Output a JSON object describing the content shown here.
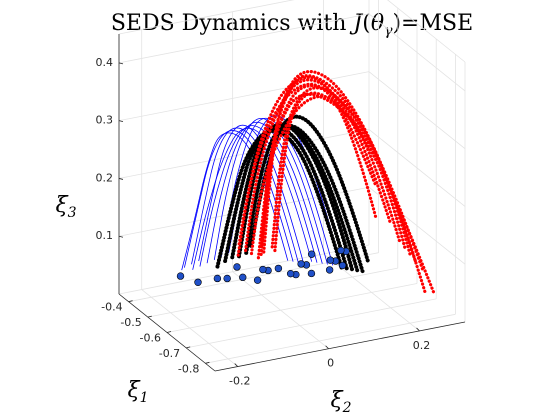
{
  "chart_data": {
    "type": "line",
    "projection": "3d",
    "title": "SEDS Dynamics with J(θγ)=MSE",
    "title_parts": {
      "prefix": "SEDS Dynamics with ",
      "fn": "J",
      "open": "(",
      "theta": "θ",
      "sub": "γ",
      "close": ")",
      "suffix": "=MSE"
    },
    "xlabel": {
      "symbol": "ξ",
      "sub": "1"
    },
    "ylabel": {
      "symbol": "ξ",
      "sub": "2"
    },
    "zlabel": {
      "symbol": "ξ",
      "sub": "3"
    },
    "x_ticks": [
      "-0.4",
      "-0.5",
      "-0.6",
      "-0.7",
      "-0.8"
    ],
    "y_ticks": [
      "0.2",
      "0",
      "-0.2"
    ],
    "z_ticks": [
      "0.1",
      "0.2",
      "0.3",
      "0.4"
    ],
    "xlim": [
      -0.85,
      -0.35
    ],
    "ylim": [
      -0.25,
      0.3
    ],
    "zlim": [
      0,
      0.45
    ],
    "grid": true,
    "colors": {
      "red": "#ff0000",
      "black": "#000000",
      "blue": "#0000ff",
      "marker": "#2050c8",
      "grid": "#e3e3e3",
      "axis": "#262626"
    },
    "series": [
      {
        "color": "red",
        "points": [
          [
            -0.78,
            0.22,
            0.1
          ],
          [
            -0.72,
            0.18,
            0.25
          ],
          [
            -0.63,
            0.12,
            0.38
          ],
          [
            -0.55,
            0.07,
            0.4
          ],
          [
            -0.48,
            0.05,
            0.32
          ],
          [
            -0.46,
            0.04,
            0.22
          ],
          [
            -0.44,
            0.03,
            0.05
          ]
        ]
      },
      {
        "color": "red",
        "points": [
          [
            -0.8,
            0.2,
            0.12
          ],
          [
            -0.74,
            0.17,
            0.27
          ],
          [
            -0.65,
            0.11,
            0.37
          ],
          [
            -0.57,
            0.06,
            0.38
          ],
          [
            -0.5,
            0.04,
            0.3
          ],
          [
            -0.47,
            0.03,
            0.2
          ],
          [
            -0.45,
            0.02,
            0.05
          ]
        ]
      },
      {
        "color": "red",
        "points": [
          [
            -0.82,
            0.18,
            0.14
          ],
          [
            -0.76,
            0.15,
            0.29
          ],
          [
            -0.67,
            0.1,
            0.36
          ],
          [
            -0.58,
            0.05,
            0.37
          ],
          [
            -0.51,
            0.03,
            0.29
          ],
          [
            -0.48,
            0.02,
            0.19
          ],
          [
            -0.46,
            0.01,
            0.05
          ]
        ]
      },
      {
        "color": "red",
        "points": [
          [
            -0.77,
            0.24,
            0.08
          ],
          [
            -0.7,
            0.2,
            0.22
          ],
          [
            -0.62,
            0.14,
            0.35
          ],
          [
            -0.54,
            0.08,
            0.39
          ],
          [
            -0.48,
            0.06,
            0.33
          ],
          [
            -0.45,
            0.04,
            0.23
          ],
          [
            -0.43,
            0.03,
            0.06
          ]
        ]
      },
      {
        "color": "red",
        "points": [
          [
            -0.79,
            0.16,
            0.18
          ],
          [
            -0.72,
            0.13,
            0.31
          ],
          [
            -0.63,
            0.09,
            0.39
          ],
          [
            -0.55,
            0.05,
            0.38
          ],
          [
            -0.49,
            0.02,
            0.28
          ],
          [
            -0.46,
            0.0,
            0.17
          ],
          [
            -0.44,
            -0.01,
            0.06
          ]
        ]
      },
      {
        "color": "red",
        "points": [
          [
            -0.81,
            0.12,
            0.2
          ],
          [
            -0.74,
            0.1,
            0.33
          ],
          [
            -0.65,
            0.07,
            0.4
          ],
          [
            -0.57,
            0.03,
            0.37
          ],
          [
            -0.5,
            0.0,
            0.27
          ],
          [
            -0.47,
            -0.02,
            0.16
          ],
          [
            -0.45,
            -0.03,
            0.06
          ]
        ]
      },
      {
        "color": "red",
        "points": [
          [
            -0.83,
            0.22,
            0.06
          ],
          [
            -0.76,
            0.19,
            0.2
          ],
          [
            -0.68,
            0.14,
            0.33
          ],
          [
            -0.59,
            0.09,
            0.38
          ],
          [
            -0.52,
            0.06,
            0.33
          ],
          [
            -0.48,
            0.05,
            0.22
          ],
          [
            -0.46,
            0.04,
            0.06
          ]
        ]
      },
      {
        "color": "red",
        "points": [
          [
            -0.76,
            0.14,
            0.24
          ],
          [
            -0.69,
            0.11,
            0.34
          ],
          [
            -0.6,
            0.08,
            0.4
          ],
          [
            -0.52,
            0.04,
            0.36
          ],
          [
            -0.47,
            0.01,
            0.26
          ],
          [
            -0.45,
            -0.01,
            0.16
          ],
          [
            -0.43,
            -0.02,
            0.07
          ]
        ]
      },
      {
        "color": "red",
        "points": [
          [
            -0.84,
            0.16,
            0.16
          ],
          [
            -0.77,
            0.13,
            0.3
          ],
          [
            -0.68,
            0.09,
            0.38
          ],
          [
            -0.6,
            0.05,
            0.36
          ],
          [
            -0.53,
            0.02,
            0.27
          ],
          [
            -0.49,
            0.0,
            0.17
          ],
          [
            -0.47,
            -0.01,
            0.06
          ]
        ]
      },
      {
        "color": "red",
        "points": [
          [
            -0.78,
            0.26,
            0.04
          ],
          [
            -0.72,
            0.22,
            0.16
          ],
          [
            -0.64,
            0.16,
            0.3
          ],
          [
            -0.56,
            0.1,
            0.36
          ],
          [
            -0.5,
            0.07,
            0.32
          ],
          [
            -0.47,
            0.06,
            0.21
          ],
          [
            -0.45,
            0.05,
            0.05
          ]
        ]
      },
      {
        "color": "black",
        "points": [
          [
            -0.62,
            0.16,
            0.05
          ],
          [
            -0.6,
            0.13,
            0.15
          ],
          [
            -0.57,
            0.09,
            0.25
          ],
          [
            -0.53,
            0.05,
            0.3
          ],
          [
            -0.48,
            0.02,
            0.28
          ],
          [
            -0.45,
            0.0,
            0.18
          ],
          [
            -0.43,
            -0.02,
            0.05
          ]
        ]
      },
      {
        "color": "black",
        "points": [
          [
            -0.64,
            0.14,
            0.06
          ],
          [
            -0.62,
            0.11,
            0.17
          ],
          [
            -0.58,
            0.07,
            0.27
          ],
          [
            -0.54,
            0.03,
            0.31
          ],
          [
            -0.49,
            0.0,
            0.27
          ],
          [
            -0.46,
            -0.02,
            0.17
          ],
          [
            -0.44,
            -0.04,
            0.05
          ]
        ]
      },
      {
        "color": "black",
        "points": [
          [
            -0.6,
            0.18,
            0.04
          ],
          [
            -0.58,
            0.15,
            0.14
          ],
          [
            -0.55,
            0.11,
            0.24
          ],
          [
            -0.51,
            0.07,
            0.29
          ],
          [
            -0.47,
            0.04,
            0.27
          ],
          [
            -0.44,
            0.02,
            0.18
          ],
          [
            -0.42,
            0.0,
            0.05
          ]
        ]
      },
      {
        "color": "black",
        "points": [
          [
            -0.66,
            0.12,
            0.07
          ],
          [
            -0.63,
            0.09,
            0.18
          ],
          [
            -0.59,
            0.05,
            0.28
          ],
          [
            -0.55,
            0.01,
            0.31
          ],
          [
            -0.5,
            -0.02,
            0.26
          ],
          [
            -0.47,
            -0.04,
            0.16
          ],
          [
            -0.45,
            -0.06,
            0.05
          ]
        ]
      },
      {
        "color": "black",
        "points": [
          [
            -0.58,
            0.2,
            0.05
          ],
          [
            -0.56,
            0.17,
            0.15
          ],
          [
            -0.53,
            0.13,
            0.25
          ],
          [
            -0.5,
            0.09,
            0.3
          ],
          [
            -0.46,
            0.06,
            0.28
          ],
          [
            -0.44,
            0.03,
            0.18
          ],
          [
            -0.42,
            0.01,
            0.06
          ]
        ]
      },
      {
        "color": "black",
        "points": [
          [
            -0.68,
            0.1,
            0.08
          ],
          [
            -0.65,
            0.07,
            0.19
          ],
          [
            -0.61,
            0.03,
            0.29
          ],
          [
            -0.56,
            -0.01,
            0.31
          ],
          [
            -0.51,
            -0.04,
            0.25
          ],
          [
            -0.48,
            -0.06,
            0.15
          ],
          [
            -0.46,
            -0.08,
            0.05
          ]
        ]
      },
      {
        "color": "blue",
        "points": [
          [
            -0.56,
            0.12,
            0.05
          ],
          [
            -0.54,
            0.09,
            0.16
          ],
          [
            -0.52,
            0.05,
            0.26
          ],
          [
            -0.49,
            0.01,
            0.31
          ],
          [
            -0.46,
            -0.02,
            0.28
          ],
          [
            -0.44,
            -0.05,
            0.18
          ],
          [
            -0.42,
            -0.07,
            0.05
          ]
        ]
      },
      {
        "color": "blue",
        "points": [
          [
            -0.58,
            0.1,
            0.06
          ],
          [
            -0.56,
            0.07,
            0.17
          ],
          [
            -0.53,
            0.03,
            0.27
          ],
          [
            -0.5,
            -0.01,
            0.31
          ],
          [
            -0.47,
            -0.04,
            0.27
          ],
          [
            -0.45,
            -0.07,
            0.17
          ],
          [
            -0.43,
            -0.09,
            0.05
          ]
        ]
      },
      {
        "color": "blue",
        "points": [
          [
            -0.54,
            0.14,
            0.04
          ],
          [
            -0.52,
            0.11,
            0.15
          ],
          [
            -0.5,
            0.07,
            0.25
          ],
          [
            -0.47,
            0.03,
            0.3
          ],
          [
            -0.45,
            0.0,
            0.28
          ],
          [
            -0.43,
            -0.03,
            0.18
          ],
          [
            -0.41,
            -0.05,
            0.05
          ]
        ]
      },
      {
        "color": "blue",
        "points": [
          [
            -0.6,
            0.08,
            0.07
          ],
          [
            -0.58,
            0.05,
            0.18
          ],
          [
            -0.55,
            0.01,
            0.28
          ],
          [
            -0.51,
            -0.03,
            0.31
          ],
          [
            -0.48,
            -0.06,
            0.26
          ],
          [
            -0.46,
            -0.09,
            0.16
          ],
          [
            -0.44,
            -0.11,
            0.05
          ]
        ]
      },
      {
        "color": "blue",
        "points": [
          [
            -0.52,
            0.16,
            0.05
          ],
          [
            -0.5,
            0.13,
            0.16
          ],
          [
            -0.48,
            0.09,
            0.26
          ],
          [
            -0.46,
            0.05,
            0.3
          ],
          [
            -0.44,
            0.02,
            0.27
          ],
          [
            -0.42,
            -0.01,
            0.17
          ],
          [
            -0.4,
            -0.03,
            0.05
          ]
        ]
      },
      {
        "color": "blue",
        "points": [
          [
            -0.62,
            0.06,
            0.08
          ],
          [
            -0.6,
            0.03,
            0.19
          ],
          [
            -0.56,
            -0.01,
            0.29
          ],
          [
            -0.52,
            -0.05,
            0.31
          ],
          [
            -0.49,
            -0.08,
            0.25
          ],
          [
            -0.47,
            -0.11,
            0.15
          ],
          [
            -0.45,
            -0.13,
            0.05
          ]
        ]
      },
      {
        "color": "blue",
        "points": [
          [
            -0.55,
            0.06,
            0.06
          ],
          [
            -0.53,
            0.03,
            0.17
          ],
          [
            -0.51,
            -0.01,
            0.27
          ],
          [
            -0.48,
            -0.05,
            0.3
          ],
          [
            -0.46,
            -0.08,
            0.26
          ],
          [
            -0.44,
            -0.1,
            0.16
          ],
          [
            -0.42,
            -0.12,
            0.05
          ]
        ]
      },
      {
        "color": "blue",
        "points": [
          [
            -0.57,
            0.04,
            0.07
          ],
          [
            -0.55,
            0.01,
            0.18
          ],
          [
            -0.52,
            -0.03,
            0.28
          ],
          [
            -0.49,
            -0.07,
            0.3
          ],
          [
            -0.47,
            -0.1,
            0.25
          ],
          [
            -0.45,
            -0.12,
            0.15
          ],
          [
            -0.43,
            -0.14,
            0.05
          ]
        ]
      },
      {
        "color": "blue",
        "points": [
          [
            -0.53,
            0.08,
            0.05
          ],
          [
            -0.51,
            0.05,
            0.16
          ],
          [
            -0.49,
            0.01,
            0.26
          ],
          [
            -0.47,
            -0.03,
            0.3
          ],
          [
            -0.45,
            -0.06,
            0.26
          ],
          [
            -0.43,
            -0.08,
            0.16
          ],
          [
            -0.41,
            -0.1,
            0.05
          ]
        ]
      },
      {
        "color": "blue",
        "points": [
          [
            -0.59,
            0.02,
            0.08
          ],
          [
            -0.57,
            -0.01,
            0.19
          ],
          [
            -0.54,
            -0.05,
            0.29
          ],
          [
            -0.5,
            -0.09,
            0.3
          ],
          [
            -0.48,
            -0.11,
            0.24
          ],
          [
            -0.46,
            -0.13,
            0.14
          ],
          [
            -0.44,
            -0.15,
            0.05
          ]
        ]
      }
    ],
    "markers": [
      [
        -0.42,
        0.22,
        0.02
      ],
      [
        -0.44,
        0.2,
        0.03
      ],
      [
        -0.46,
        0.18,
        0.02
      ],
      [
        -0.48,
        0.16,
        0.03
      ],
      [
        -0.5,
        0.15,
        0.02
      ],
      [
        -0.43,
        0.14,
        0.03
      ],
      [
        -0.45,
        0.12,
        0.02
      ],
      [
        -0.47,
        0.1,
        0.03
      ],
      [
        -0.49,
        0.08,
        0.02
      ],
      [
        -0.51,
        0.06,
        0.03
      ],
      [
        -0.44,
        0.04,
        0.02
      ],
      [
        -0.46,
        0.02,
        0.03
      ],
      [
        -0.48,
        0.0,
        0.02
      ],
      [
        -0.42,
        -0.02,
        0.03
      ],
      [
        -0.44,
        -0.05,
        0.02
      ],
      [
        -0.46,
        -0.08,
        0.03
      ],
      [
        -0.43,
        -0.11,
        0.02
      ],
      [
        -0.41,
        -0.14,
        0.03
      ],
      [
        -0.45,
        -0.02,
        0.02
      ],
      [
        -0.47,
        0.05,
        0.03
      ],
      [
        -0.5,
        0.11,
        0.02
      ],
      [
        -0.52,
        0.17,
        0.03
      ]
    ]
  }
}
